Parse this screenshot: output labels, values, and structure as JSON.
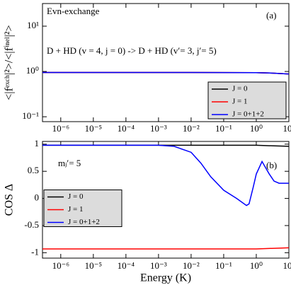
{
  "chart_data": [
    {
      "type": "line",
      "title": "Evn-exchange",
      "annotations": [
        "D + HD (v = 4, j = 0) -> D + HD (v′= 3, j′= 5)",
        "(a)"
      ],
      "ylabel": "<|fᵉˣᶜʰ|²>/<|fⁱⁿᵉˡ|²>",
      "xscale": "log",
      "yscale": "log",
      "xlim": [
        2.75e-07,
        10
      ],
      "ylim": [
        0.078,
        31.6
      ],
      "xticks": [
        {
          "value": 1e-06,
          "label": "10⁻⁶"
        },
        {
          "value": 1e-05,
          "label": "10⁻⁵"
        },
        {
          "value": 0.0001,
          "label": "10⁻⁴"
        },
        {
          "value": 0.001,
          "label": "10⁻³"
        },
        {
          "value": 0.01,
          "label": "10⁻²"
        },
        {
          "value": 0.1,
          "label": "10⁻¹"
        },
        {
          "value": 1,
          "label": "10⁰"
        },
        {
          "value": 10,
          "label": "10¹"
        }
      ],
      "yticks": [
        {
          "value": 0.1,
          "label": "10⁻¹"
        },
        {
          "value": 1,
          "label": "10⁰"
        },
        {
          "value": 10,
          "label": "10¹"
        }
      ],
      "legend": "lower right",
      "series": [
        {
          "name": "J = 0",
          "color": "#000000",
          "x": [
            2.75e-07,
            0.01,
            1,
            3,
            10
          ],
          "values": [
            0.95,
            0.95,
            0.94,
            0.92,
            0.88
          ]
        },
        {
          "name": "J = 1",
          "color": "#ff0000",
          "x": [
            2.75e-07,
            0.01,
            1,
            3,
            10
          ],
          "values": [
            0.95,
            0.95,
            0.94,
            0.92,
            0.88
          ]
        },
        {
          "name": "J = 0+1+2",
          "color": "#0000ff",
          "x": [
            2.75e-07,
            0.01,
            1,
            3,
            10
          ],
          "values": [
            0.95,
            0.95,
            0.94,
            0.92,
            0.88
          ]
        }
      ]
    },
    {
      "type": "line",
      "annotations": [
        "mⱼ′= 5",
        "(b)"
      ],
      "ylabel": "COS Δ",
      "xlabel": "Energy (K)",
      "xscale": "log",
      "xlim": [
        2.75e-07,
        10
      ],
      "ylim": [
        -1.1,
        1.05
      ],
      "xticks": [
        {
          "value": 1e-06,
          "label": "10⁻⁶"
        },
        {
          "value": 1e-05,
          "label": "10⁻⁵"
        },
        {
          "value": 0.0001,
          "label": "10⁻⁴"
        },
        {
          "value": 0.001,
          "label": "10⁻³"
        },
        {
          "value": 0.01,
          "label": "10⁻²"
        },
        {
          "value": 0.1,
          "label": "10⁻¹"
        },
        {
          "value": 1,
          "label": "10⁰"
        },
        {
          "value": 10,
          "label": "10¹"
        }
      ],
      "yticks": [
        -1,
        -0.5,
        0,
        0.5,
        1
      ],
      "legend": "center left",
      "series": [
        {
          "name": "J = 0",
          "color": "#000000",
          "x": [
            2.75e-07,
            0.01,
            1,
            3,
            10
          ],
          "values": [
            0.98,
            0.98,
            0.98,
            0.97,
            0.96
          ]
        },
        {
          "name": "J = 1",
          "color": "#ff0000",
          "x": [
            2.75e-07,
            0.01,
            1,
            3,
            10
          ],
          "values": [
            -0.93,
            -0.93,
            -0.93,
            -0.92,
            -0.91
          ]
        },
        {
          "name": "J = 0+1+2",
          "color": "#0000ff",
          "x": [
            2.75e-07,
            0.0001,
            0.001,
            0.003,
            0.01,
            0.02,
            0.04,
            0.1,
            0.25,
            0.5,
            0.6,
            0.8,
            1,
            1.5,
            2,
            2.5,
            3.5,
            5,
            10
          ],
          "values": [
            0.98,
            0.98,
            0.98,
            0.96,
            0.85,
            0.65,
            0.4,
            0.15,
            0,
            -0.13,
            -0.1,
            0.2,
            0.45,
            0.68,
            0.55,
            0.45,
            0.32,
            0.28,
            0.28
          ]
        }
      ]
    }
  ]
}
